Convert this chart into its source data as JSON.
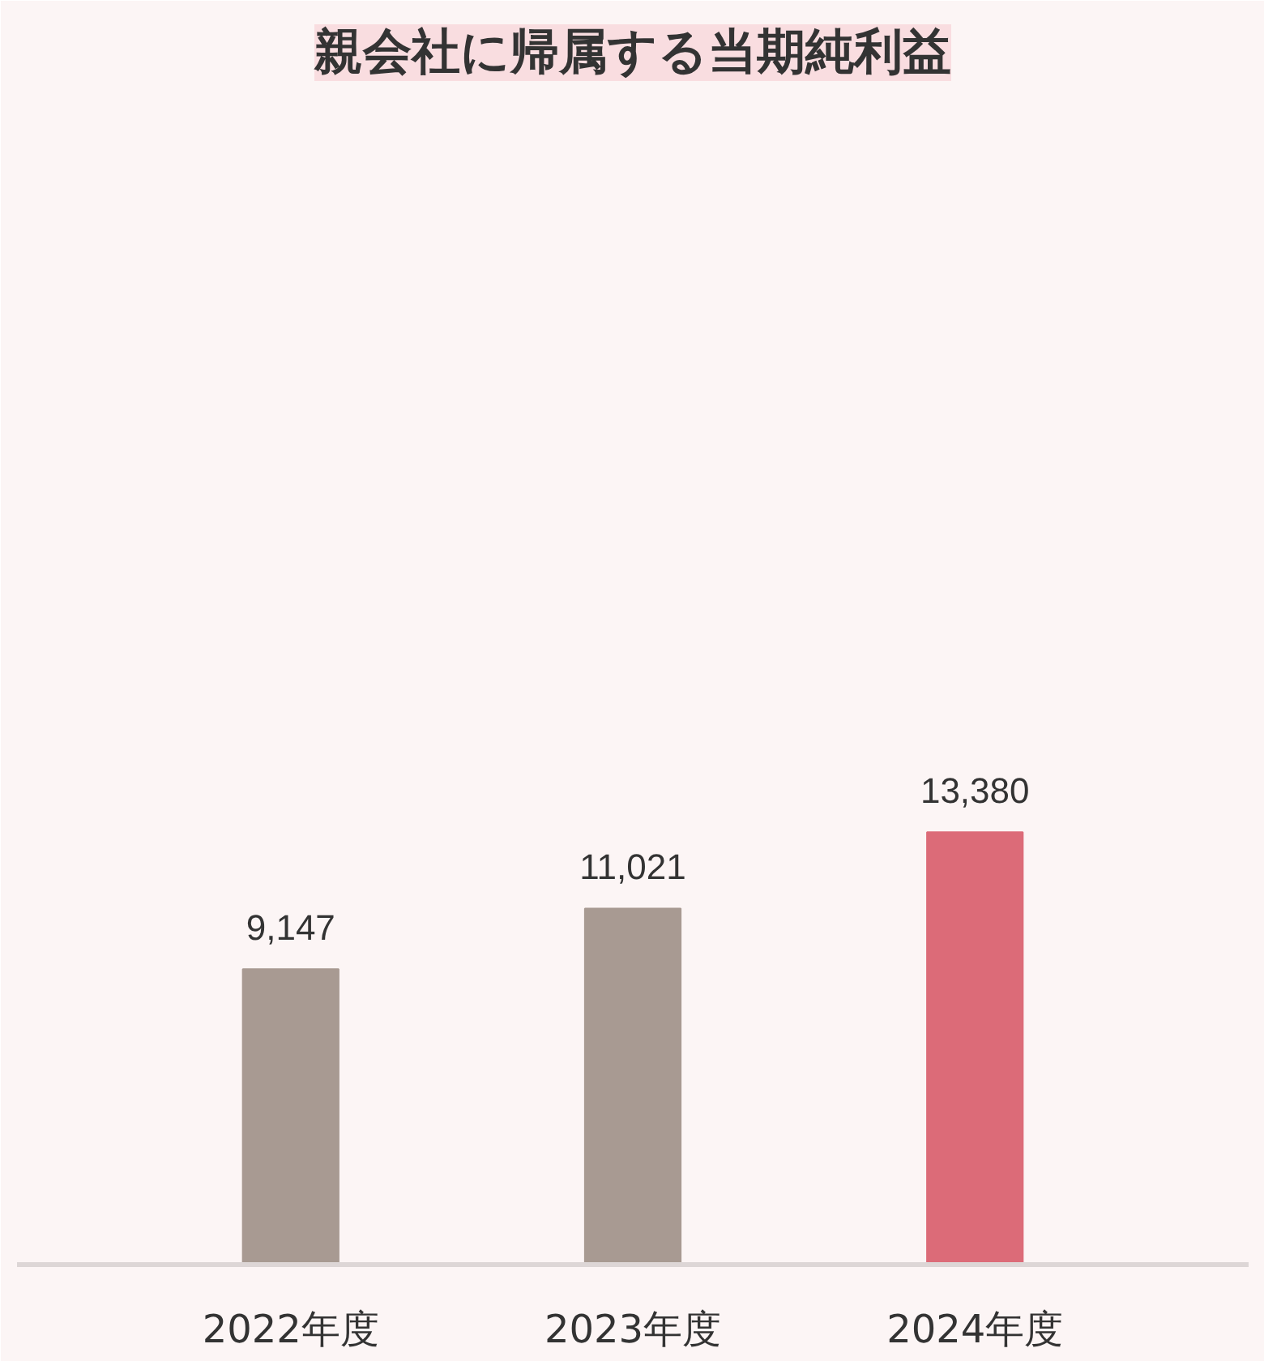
{
  "chart_data": {
    "type": "bar",
    "title": "親会社に帰属する当期純利益",
    "categories": [
      "2022年度",
      "2023年度",
      "2024年度"
    ],
    "values": [
      9147,
      11021,
      13380
    ],
    "value_labels": [
      "9,147",
      "11,021",
      "13,380"
    ],
    "colors": [
      "#a89a92",
      "#a89a92",
      "#dc6b78"
    ],
    "ylim": [
      0,
      36000
    ],
    "grid": false
  }
}
